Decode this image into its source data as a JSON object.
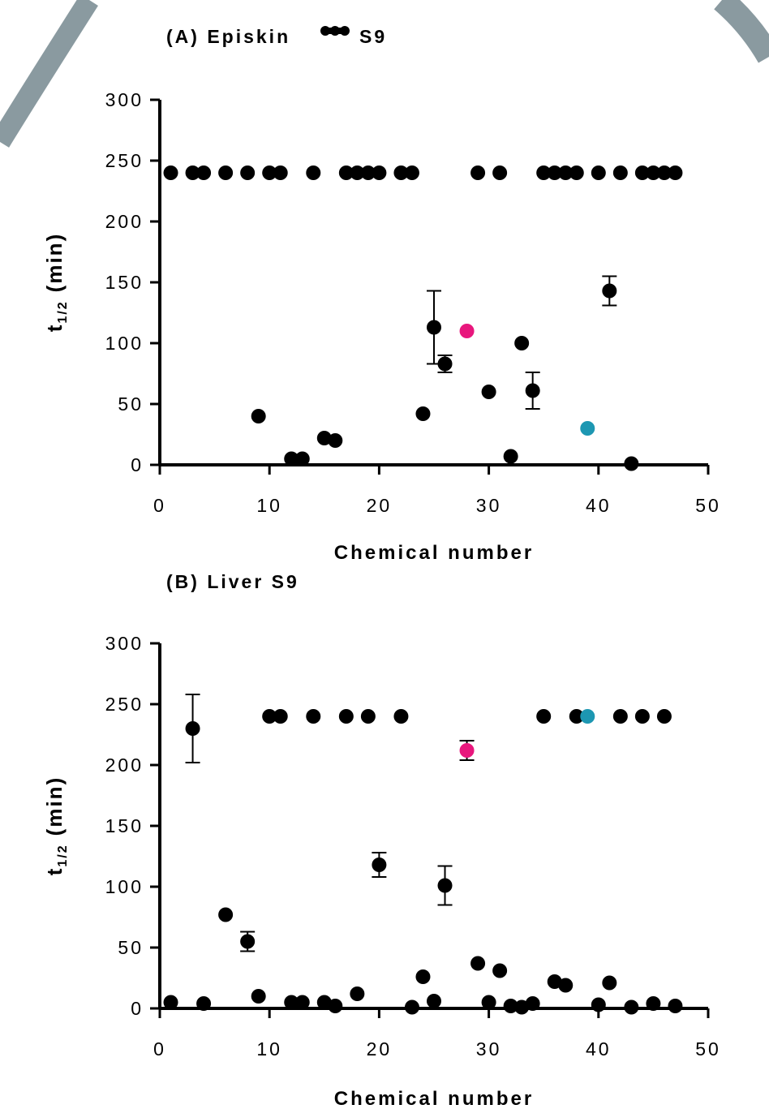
{
  "chart_data": [
    {
      "type": "scatter",
      "title": "(A) Episkin",
      "title_suffix": "S9",
      "xlabel": "Chemical number",
      "ylabel": "t",
      "ylabel_sub": "1/2",
      "ylabel_unit": "(min)",
      "xlim": [
        0,
        50
      ],
      "ylim": [
        0,
        300
      ],
      "xticks": [
        0,
        10,
        20,
        30,
        40,
        50
      ],
      "yticks": [
        0,
        50,
        100,
        150,
        200,
        250,
        300
      ],
      "grid": false,
      "colors": {
        "default": "#000000",
        "pink": "#e8177d",
        "teal": "#1d97b2"
      },
      "points": [
        {
          "x": 1,
          "y": 240
        },
        {
          "x": 3,
          "y": 240
        },
        {
          "x": 4,
          "y": 240
        },
        {
          "x": 6,
          "y": 240
        },
        {
          "x": 8,
          "y": 240
        },
        {
          "x": 10,
          "y": 240
        },
        {
          "x": 11,
          "y": 240
        },
        {
          "x": 14,
          "y": 240
        },
        {
          "x": 17,
          "y": 240
        },
        {
          "x": 18,
          "y": 240
        },
        {
          "x": 19,
          "y": 240
        },
        {
          "x": 20,
          "y": 240
        },
        {
          "x": 22,
          "y": 240
        },
        {
          "x": 23,
          "y": 240
        },
        {
          "x": 29,
          "y": 240
        },
        {
          "x": 31,
          "y": 240
        },
        {
          "x": 35,
          "y": 240
        },
        {
          "x": 36,
          "y": 240
        },
        {
          "x": 37,
          "y": 240
        },
        {
          "x": 38,
          "y": 240
        },
        {
          "x": 40,
          "y": 240
        },
        {
          "x": 42,
          "y": 240
        },
        {
          "x": 44,
          "y": 240
        },
        {
          "x": 45,
          "y": 240
        },
        {
          "x": 46,
          "y": 240
        },
        {
          "x": 47,
          "y": 240
        },
        {
          "x": 9,
          "y": 40
        },
        {
          "x": 12,
          "y": 5
        },
        {
          "x": 13,
          "y": 5
        },
        {
          "x": 15,
          "y": 22
        },
        {
          "x": 16,
          "y": 20
        },
        {
          "x": 24,
          "y": 42
        },
        {
          "x": 25,
          "y": 113,
          "err": 30
        },
        {
          "x": 26,
          "y": 83,
          "err": 7
        },
        {
          "x": 28,
          "y": 110,
          "color": "pink"
        },
        {
          "x": 30,
          "y": 60
        },
        {
          "x": 32,
          "y": 7
        },
        {
          "x": 33,
          "y": 100
        },
        {
          "x": 34,
          "y": 61,
          "err": 15
        },
        {
          "x": 39,
          "y": 30,
          "color": "teal"
        },
        {
          "x": 41,
          "y": 143,
          "err": 12
        },
        {
          "x": 43,
          "y": 1
        }
      ]
    },
    {
      "type": "scatter",
      "title": "(B) Liver S9",
      "xlabel": "Chemical number",
      "ylabel": "t",
      "ylabel_sub": "1/2",
      "ylabel_unit": "(min)",
      "xlim": [
        0,
        50
      ],
      "ylim": [
        0,
        300
      ],
      "xticks": [
        0,
        10,
        20,
        30,
        40,
        50
      ],
      "yticks": [
        0,
        50,
        100,
        150,
        200,
        250,
        300
      ],
      "grid": false,
      "colors": {
        "default": "#000000",
        "pink": "#e8177d",
        "teal": "#1d97b2"
      },
      "points": [
        {
          "x": 3,
          "y": 230,
          "err": 28
        },
        {
          "x": 10,
          "y": 240
        },
        {
          "x": 11,
          "y": 240
        },
        {
          "x": 14,
          "y": 240
        },
        {
          "x": 17,
          "y": 240
        },
        {
          "x": 19,
          "y": 240
        },
        {
          "x": 22,
          "y": 240
        },
        {
          "x": 35,
          "y": 240
        },
        {
          "x": 38,
          "y": 240
        },
        {
          "x": 39,
          "y": 240,
          "color": "teal"
        },
        {
          "x": 42,
          "y": 240
        },
        {
          "x": 44,
          "y": 240
        },
        {
          "x": 46,
          "y": 240
        },
        {
          "x": 28,
          "y": 212,
          "color": "pink",
          "err": 8
        },
        {
          "x": 6,
          "y": 77
        },
        {
          "x": 8,
          "y": 55,
          "err": 8
        },
        {
          "x": 20,
          "y": 118,
          "err": 10
        },
        {
          "x": 26,
          "y": 101,
          "err": 16
        },
        {
          "x": 1,
          "y": 5
        },
        {
          "x": 4,
          "y": 4
        },
        {
          "x": 9,
          "y": 10
        },
        {
          "x": 12,
          "y": 5
        },
        {
          "x": 13,
          "y": 5
        },
        {
          "x": 15,
          "y": 5
        },
        {
          "x": 16,
          "y": 2
        },
        {
          "x": 18,
          "y": 12
        },
        {
          "x": 23,
          "y": 1
        },
        {
          "x": 24,
          "y": 26
        },
        {
          "x": 25,
          "y": 6
        },
        {
          "x": 29,
          "y": 37
        },
        {
          "x": 30,
          "y": 5
        },
        {
          "x": 31,
          "y": 31
        },
        {
          "x": 32,
          "y": 2
        },
        {
          "x": 33,
          "y": 1
        },
        {
          "x": 34,
          "y": 4
        },
        {
          "x": 36,
          "y": 22
        },
        {
          "x": 37,
          "y": 19
        },
        {
          "x": 40,
          "y": 3
        },
        {
          "x": 41,
          "y": 21
        },
        {
          "x": 43,
          "y": 1
        },
        {
          "x": 45,
          "y": 4
        },
        {
          "x": 47,
          "y": 2
        }
      ]
    }
  ]
}
